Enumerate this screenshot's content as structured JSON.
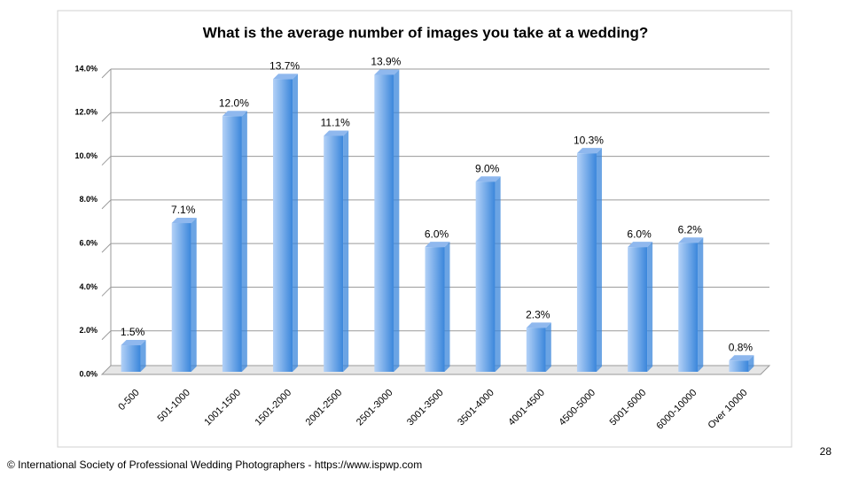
{
  "chart_data": {
    "type": "bar",
    "title": "What is the average number of images you take at a wedding?",
    "categories": [
      "0-500",
      "501-1000",
      "1001-1500",
      "1501-2000",
      "2001-2500",
      "2501-3000",
      "3001-3500",
      "3501-4000",
      "4001-4500",
      "4500-5000",
      "5001-6000",
      "6000-10000",
      "Over 10000"
    ],
    "values": [
      1.5,
      7.1,
      12.0,
      13.7,
      11.1,
      13.9,
      6.0,
      9.0,
      2.3,
      10.3,
      6.0,
      6.2,
      0.8
    ],
    "value_labels": [
      "1.5%",
      "7.1%",
      "12.0%",
      "13.7%",
      "11.1%",
      "13.9%",
      "6.0%",
      "9.0%",
      "2.3%",
      "10.3%",
      "6.0%",
      "6.2%",
      "0.8%"
    ],
    "color": "#3a86db",
    "ylim": [
      0,
      14
    ],
    "yticks": [
      {
        "value": 0,
        "label": "0.0%"
      },
      {
        "value": 2,
        "label": "2.0%"
      },
      {
        "value": 4,
        "label": "4.0%"
      },
      {
        "value": 6,
        "label": "6.0%"
      },
      {
        "value": 8,
        "label": "8.0%"
      },
      {
        "value": 10,
        "label": "10.0%"
      },
      {
        "value": 12,
        "label": "12.0%"
      },
      {
        "value": 14,
        "label": "14.0%"
      }
    ],
    "grid": true
  },
  "footer": "© International Society of Professional Wedding Photographers -  https://www.ispwp.com",
  "page_number": "28"
}
